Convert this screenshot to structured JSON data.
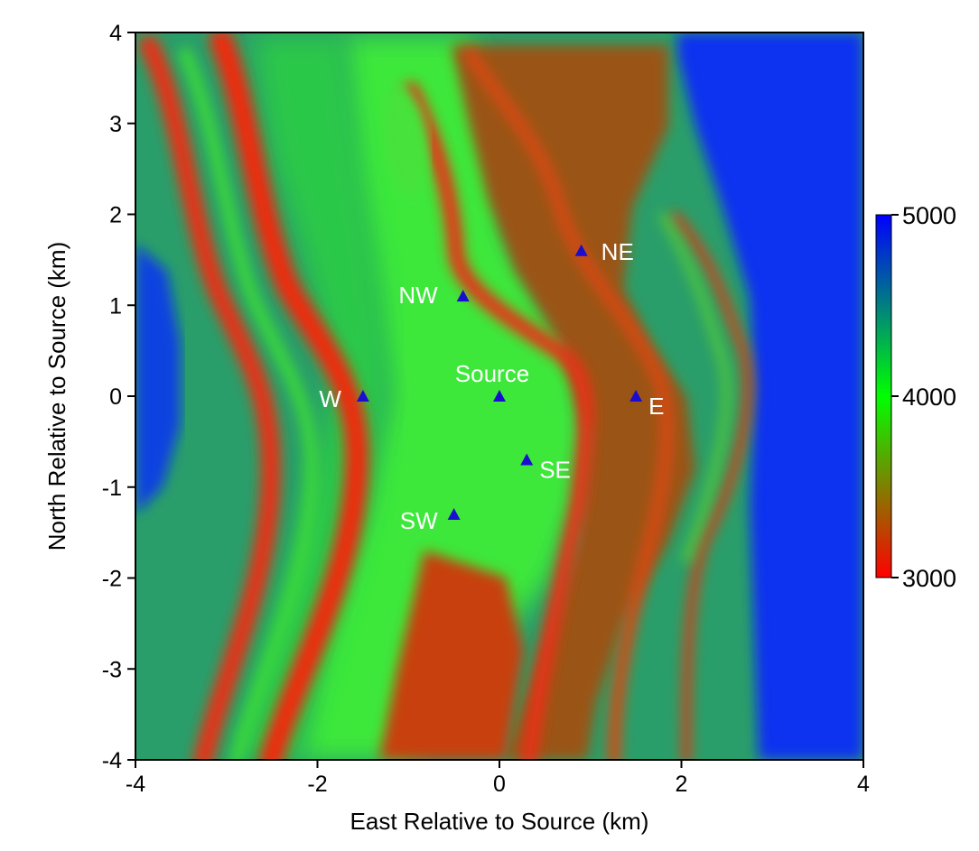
{
  "chart_data": {
    "type": "heatmap",
    "title": "",
    "xlabel": "East Relative to Source (km)",
    "ylabel": "North Relative to Source (km)",
    "xlim": [
      -4,
      4
    ],
    "ylim": [
      -4,
      4
    ],
    "x_ticks": [
      "-4",
      "-2",
      "0",
      "2",
      "4"
    ],
    "y_ticks": [
      "-4",
      "-3",
      "-2",
      "-1",
      "0",
      "1",
      "2",
      "3",
      "4"
    ],
    "grid": false,
    "colorbar": {
      "min": 3000,
      "max": 5000,
      "ticks": [
        "3000",
        "4000",
        "5000"
      ],
      "colors": [
        "#ff0000",
        "#00ff00",
        "#0000ff"
      ]
    },
    "stations": [
      {
        "label": "Source",
        "x": 0.0,
        "y": 0.0
      },
      {
        "label": "W",
        "x": -1.5,
        "y": 0.0
      },
      {
        "label": "E",
        "x": 1.5,
        "y": 0.0
      },
      {
        "label": "NW",
        "x": -0.4,
        "y": 1.1
      },
      {
        "label": "NE",
        "x": 0.9,
        "y": 1.6
      },
      {
        "label": "SE",
        "x": 0.3,
        "y": -0.7
      },
      {
        "label": "SW",
        "x": -0.5,
        "y": -1.3
      }
    ],
    "marker_color": "#1a0dd0",
    "station_label_color": "#ffffff"
  }
}
